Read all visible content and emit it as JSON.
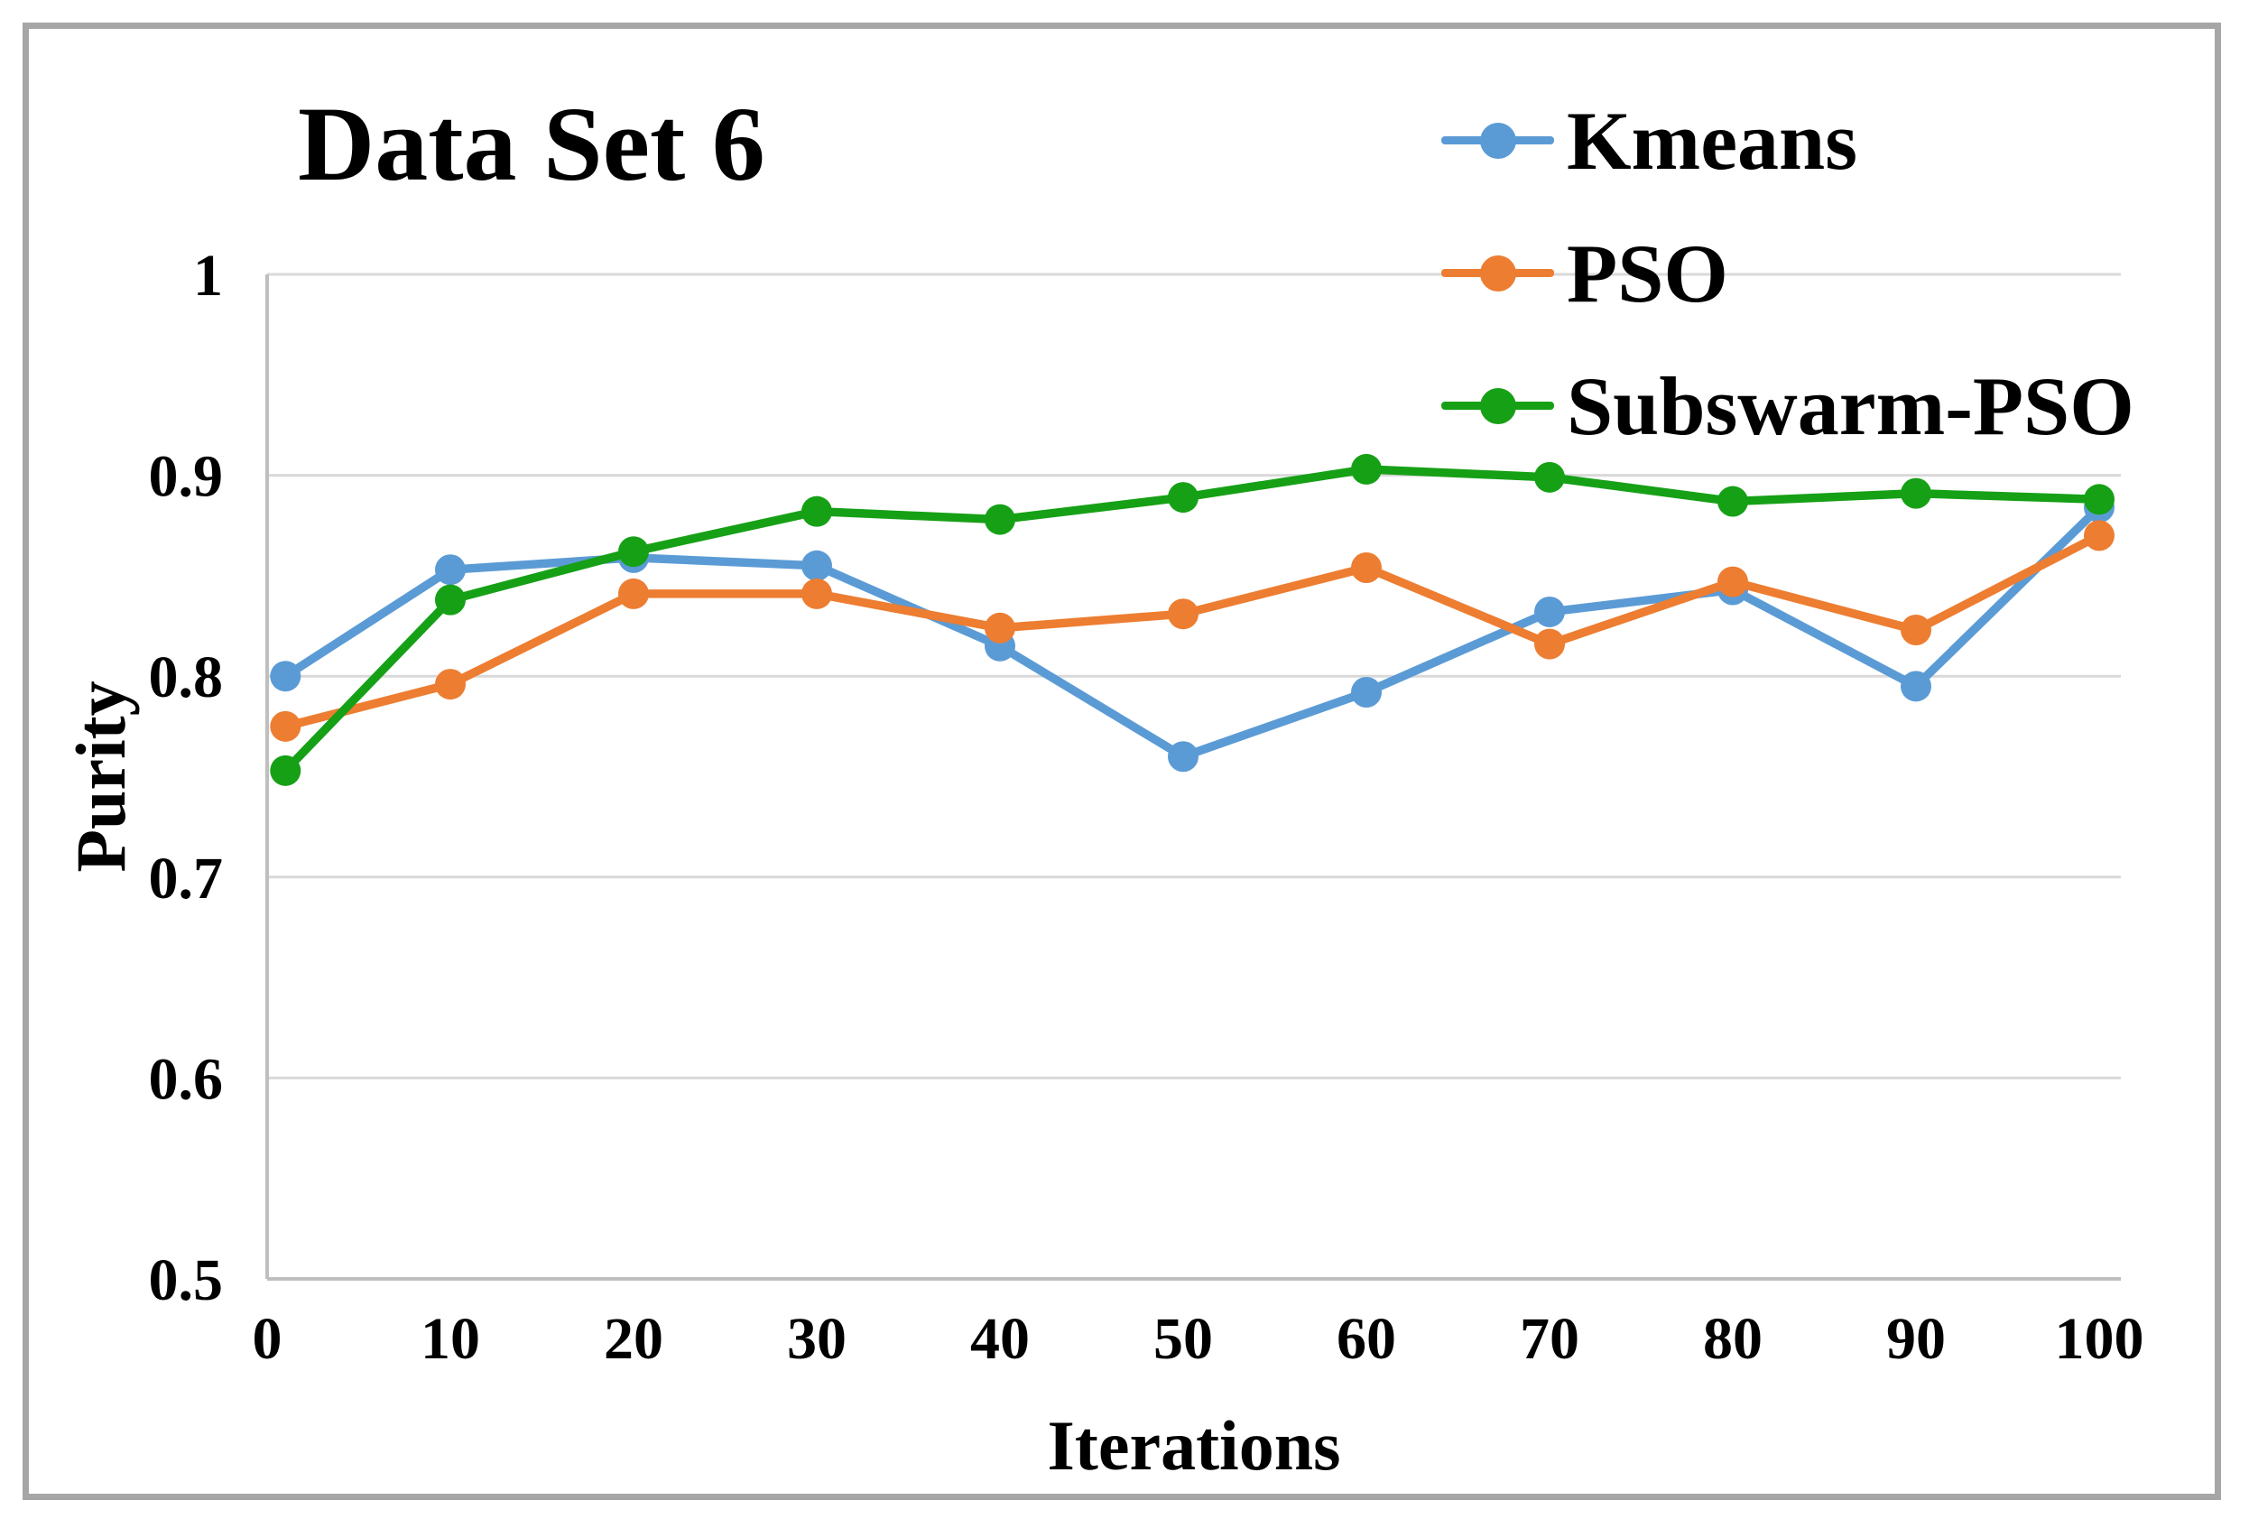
{
  "figure": {
    "background": "#FFFFFF",
    "border_color": "#A6A6A6"
  },
  "chart_data": {
    "type": "line",
    "title": "Data Set 6",
    "xlabel": "Iterations",
    "ylabel": "Purity",
    "x": [
      1,
      10,
      20,
      30,
      40,
      50,
      60,
      70,
      80,
      90,
      100
    ],
    "x_tick_values": [
      0,
      10,
      20,
      30,
      40,
      50,
      60,
      70,
      80,
      90,
      100
    ],
    "x_tick_labels": [
      "0",
      "10",
      "20",
      "30",
      "40",
      "50",
      "60",
      "70",
      "80",
      "90",
      "100"
    ],
    "y_tick_values": [
      1,
      0.9,
      0.8,
      0.7,
      0.6,
      0.5
    ],
    "y_tick_labels": [
      "1",
      "0.9",
      "0.8",
      "0.7",
      "0.6",
      "0.5"
    ],
    "xlim": [
      0,
      101.2
    ],
    "ylim": [
      0.5,
      1.0
    ],
    "grid": true,
    "legend_position": "top-right",
    "gridline_color": "#D9D9D9",
    "axis_line_color": "#BFBFBF",
    "text_color": "#000000",
    "series": [
      {
        "name": "Kmeans",
        "color": "#5B9BD5",
        "values": [
          0.8,
          0.853,
          0.859,
          0.855,
          0.815,
          0.76,
          0.792,
          0.832,
          0.843,
          0.795,
          0.884
        ]
      },
      {
        "name": "PSO",
        "color": "#ED7D31",
        "values": [
          0.775,
          0.796,
          0.841,
          0.841,
          0.824,
          0.831,
          0.854,
          0.816,
          0.847,
          0.823,
          0.87
        ]
      },
      {
        "name": "Subswarm-PSO",
        "color": "#16A016",
        "values": [
          0.753,
          0.838,
          0.862,
          0.882,
          0.878,
          0.889,
          0.903,
          0.899,
          0.887,
          0.891,
          0.888
        ]
      }
    ]
  }
}
